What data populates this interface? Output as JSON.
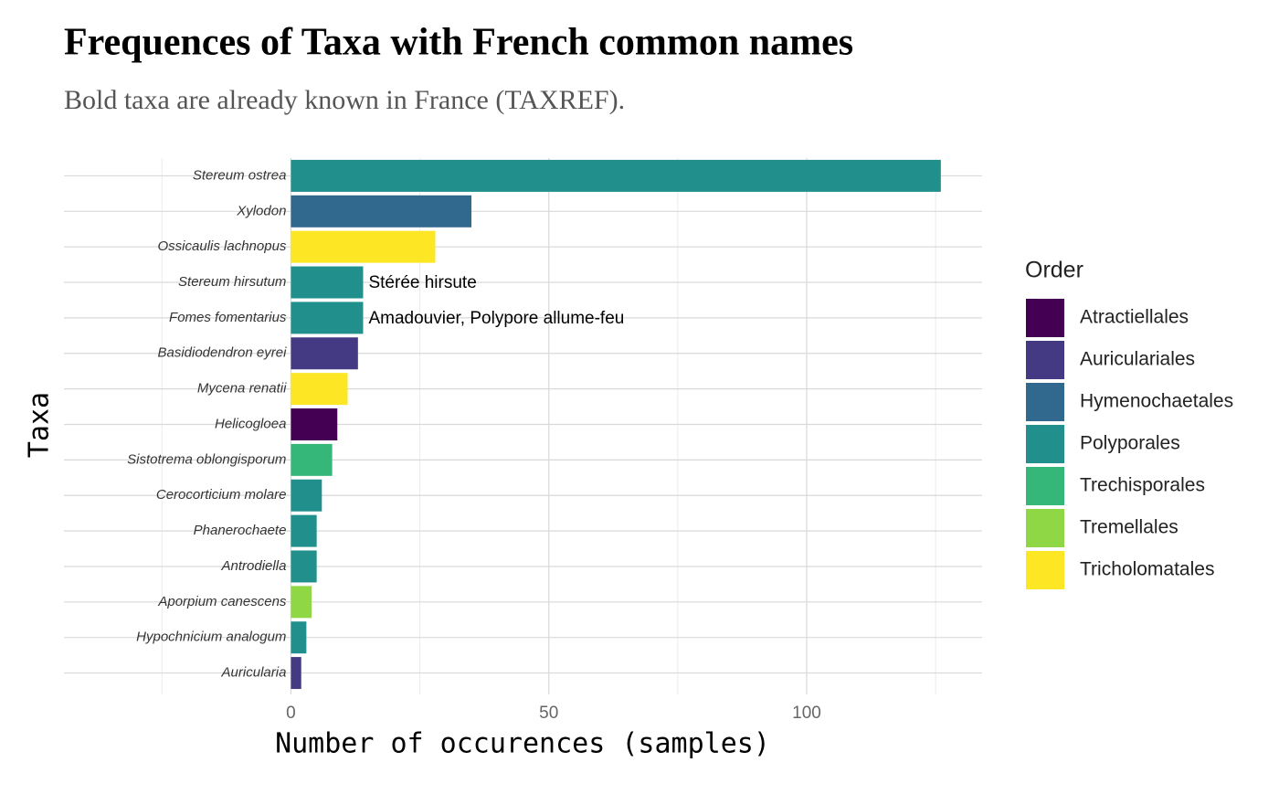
{
  "chart_data": {
    "type": "barh",
    "title": "Frequences of Taxa with French common names",
    "subtitle": "Bold taxa are already known in France (TAXREF).",
    "x_label": "Number of occurences (samples)",
    "y_label": "Taxa",
    "categories": [
      "Stereum ostrea",
      "Xylodon",
      "Ossicaulis lachnopus",
      "Stereum hirsutum",
      "Fomes fomentarius",
      "Basidiodendron eyrei",
      "Mycena renatii",
      "Helicogloea",
      "Sistotrema oblongisporum",
      "Cerocorticium molare",
      "Phanerochaete",
      "Antrodiella",
      "Aporpium canescens",
      "Hypochnicium analogum",
      "Auricularia"
    ],
    "values": [
      126,
      35,
      28,
      14,
      14,
      13,
      11,
      9,
      8,
      6,
      5,
      5,
      4,
      3,
      2
    ],
    "orders": [
      "Polyporales",
      "Hymenochaetales",
      "Tricholomatales",
      "Polyporales",
      "Polyporales",
      "Auriculariales",
      "Tricholomatales",
      "Atractiellales",
      "Trechisporales",
      "Polyporales",
      "Polyporales",
      "Polyporales",
      "Tremellales",
      "Polyporales",
      "Auriculariales"
    ],
    "common_names": [
      null,
      null,
      null,
      "Stérée hirsute",
      "Amadouvier, Polypore allume-feu",
      null,
      null,
      null,
      null,
      null,
      null,
      null,
      null,
      null,
      null
    ],
    "legend": {
      "title": "Order",
      "items": [
        {
          "name": "Atractiellales",
          "color": "#440154"
        },
        {
          "name": "Auriculariales",
          "color": "#443983"
        },
        {
          "name": "Hymenochaetales",
          "color": "#31688E"
        },
        {
          "name": "Polyporales",
          "color": "#21908C"
        },
        {
          "name": "Trechisporales",
          "color": "#35B779"
        },
        {
          "name": "Tremellales",
          "color": "#8FD744"
        },
        {
          "name": "Tricholomatales",
          "color": "#FDE725"
        }
      ]
    },
    "xlim": [
      -44,
      134
    ],
    "xticks": [
      0,
      50,
      100
    ],
    "xminor": [
      -25,
      25,
      75,
      125
    ],
    "grid": true
  }
}
